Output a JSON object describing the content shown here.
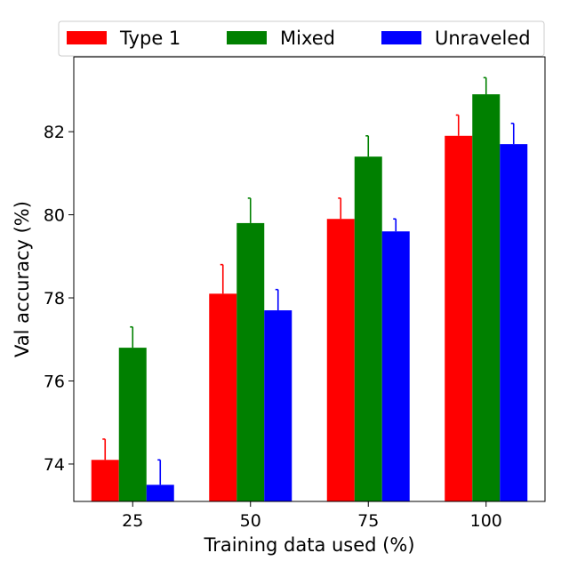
{
  "chart_data": {
    "type": "bar",
    "title": "",
    "xlabel": "Training data used (%)",
    "ylabel": "Val accuracy (%)",
    "categories": [
      "25",
      "50",
      "75",
      "100"
    ],
    "ylim": [
      73.1,
      83.8
    ],
    "yticks": [
      74,
      76,
      78,
      80,
      82
    ],
    "ytick_labels": [
      "74",
      "76",
      "78",
      "80",
      "82"
    ],
    "legend_position": "top",
    "grid": false,
    "series": [
      {
        "name": "Type 1",
        "color": "#ff0000",
        "values": [
          74.1,
          78.1,
          79.9,
          81.9
        ],
        "errors": [
          0.5,
          0.7,
          0.5,
          0.5
        ]
      },
      {
        "name": "Mixed",
        "color": "#008000",
        "values": [
          76.8,
          79.8,
          81.4,
          82.9
        ],
        "errors": [
          0.5,
          0.6,
          0.5,
          0.4
        ]
      },
      {
        "name": "Unraveled",
        "color": "#0000ff",
        "values": [
          73.5,
          77.7,
          79.6,
          81.7
        ],
        "errors": [
          0.6,
          0.5,
          0.3,
          0.5
        ]
      }
    ]
  }
}
